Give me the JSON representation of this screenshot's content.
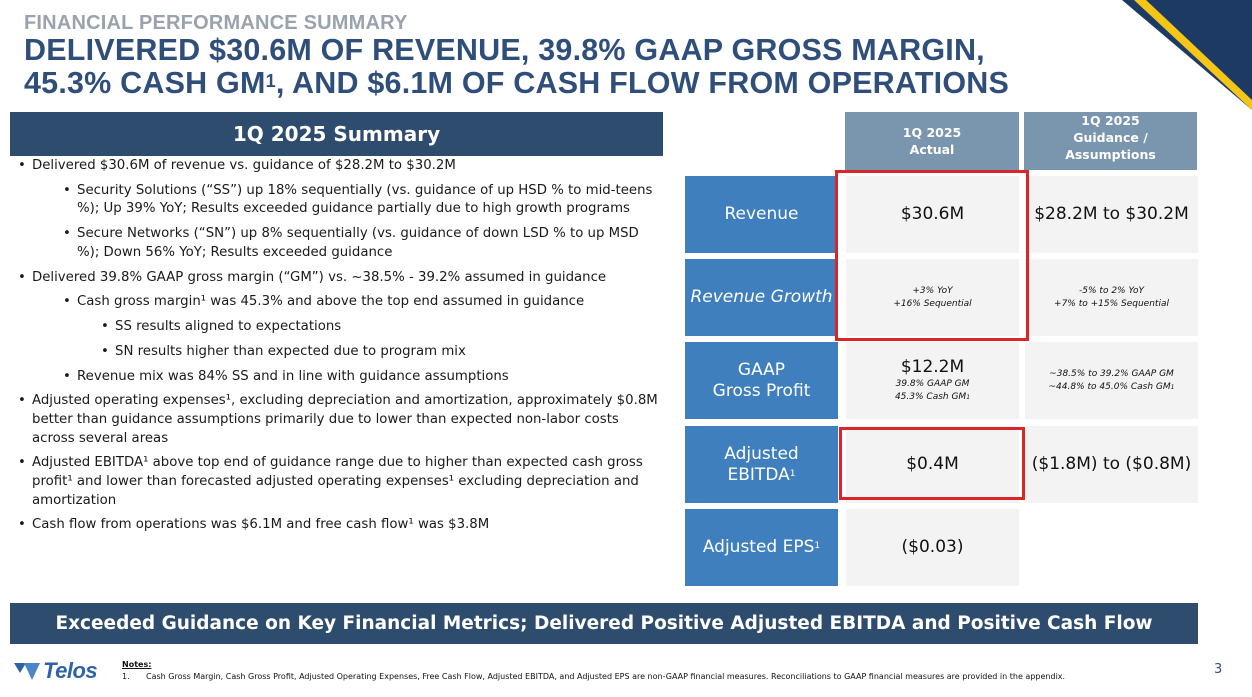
{
  "header": {
    "eyebrow": "FINANCIAL PERFORMANCE SUMMARY",
    "headline_line1": "DELIVERED $30.6M OF REVENUE, 39.8% GAAP GROSS MARGIN,",
    "headline_line2_a": "45.3% CASH GM",
    "headline_sup": "1",
    "headline_line2_b": ", AND $6.1M OF CASH FLOW FROM OPERATIONS"
  },
  "summary": {
    "title": "1Q 2025 Summary",
    "bullets": [
      {
        "level": 1,
        "text": "Delivered $30.6M of revenue vs. guidance of $28.2M to $30.2M"
      },
      {
        "level": 2,
        "text": "Security Solutions (“SS”) up 18% sequentially (vs. guidance of up HSD % to mid-teens %); Up 39% YoY; Results exceeded guidance partially due to high growth programs"
      },
      {
        "level": 2,
        "text": "Secure Networks (“SN”) up 8% sequentially (vs. guidance of down LSD % to up MSD %); Down 56% YoY; Results exceeded guidance"
      },
      {
        "level": 1,
        "text": "Delivered 39.8% GAAP gross margin (“GM”) vs. ~38.5% - 39.2% assumed in guidance"
      },
      {
        "level": 2,
        "text": "Cash gross margin¹ was 45.3% and above the top end assumed in guidance"
      },
      {
        "level": 3,
        "text": "SS results aligned to expectations"
      },
      {
        "level": 3,
        "text": "SN results higher than expected due to program mix"
      },
      {
        "level": 2,
        "text": "Revenue mix was 84% SS and in line with guidance assumptions"
      },
      {
        "level": 1,
        "text": "Adjusted operating expenses¹, excluding depreciation and amortization, approximately $0.8M better than guidance assumptions primarily due to lower than expected non-labor costs across several areas"
      },
      {
        "level": 1,
        "text": "Adjusted EBITDA¹ above top end of guidance range due to higher than expected cash gross profit¹ and lower than forecasted adjusted operating expenses¹ excluding depreciation and amortization"
      },
      {
        "level": 1,
        "text": "Cash flow from operations was $6.1M and free cash flow¹ was $3.8M"
      }
    ]
  },
  "table": {
    "col_actual_l1": "1Q 2025",
    "col_actual_l2": "Actual",
    "col_guid_l1": "1Q 2025",
    "col_guid_l2": "Guidance /",
    "col_guid_l3": "Assumptions",
    "rows": {
      "revenue": {
        "label": "Revenue",
        "actual": "$30.6M",
        "guidance": "$28.2M to $30.2M"
      },
      "growth": {
        "label": "Revenue Growth",
        "actual_l1": "+3% YoY",
        "actual_l2": "+16% Sequential",
        "guidance_l1": "-5% to 2% YoY",
        "guidance_l2": "+7% to +15% Sequential"
      },
      "gross_profit": {
        "label_l1": "GAAP",
        "label_l2": "Gross Profit",
        "actual": "$12.2M",
        "actual_l1": "39.8% GAAP GM",
        "actual_l2": "45.3% Cash GM",
        "guidance_l1": "~38.5% to 39.2% GAAP GM",
        "guidance_l2": "~44.8% to 45.0% Cash GM"
      },
      "ebitda": {
        "label_l1": "Adjusted",
        "label_l2": "EBITDA",
        "actual": "$0.4M",
        "guidance": "($1.8M) to ($0.8M)"
      },
      "eps": {
        "label": "Adjusted EPS",
        "actual": "($0.03)"
      }
    },
    "footnote_mark": "1"
  },
  "banner": {
    "text": "Exceeded Guidance on Key Financial Metrics; Delivered Positive Adjusted EBITDA and Positive Cash Flow"
  },
  "footer": {
    "logo_text": "Telos",
    "notes_title": "Notes:",
    "note_num": "1.",
    "note_text": "Cash Gross Margin, Cash Gross Profit, Adjusted Operating Expenses, Free Cash Flow, Adjusted EBITDA, and Adjusted EPS are non-GAAP financial measures. Reconciliations to GAAP financial measures are provided in the appendix.",
    "page_number": "3"
  },
  "colors": {
    "navy": "#2e4d6e",
    "blue": "#3f7fbd",
    "slate": "#7a96ae",
    "accent_red": "#d9262b",
    "title_blue": "#2f4f7a"
  }
}
